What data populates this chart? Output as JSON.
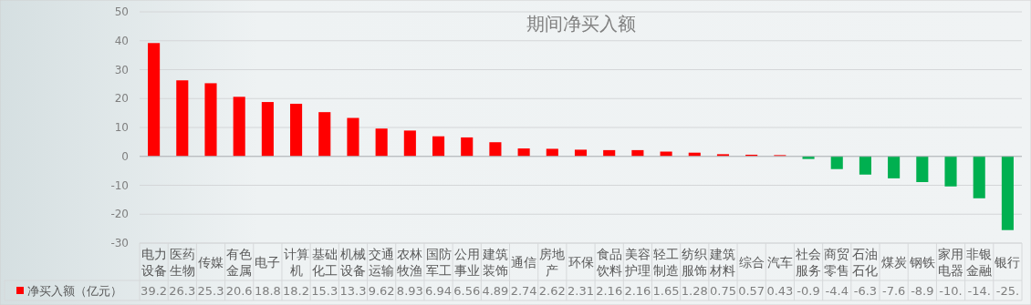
{
  "chart_data": {
    "type": "bar",
    "title": "期间净买入额",
    "categories": [
      "电力设备",
      "医药生物",
      "传媒",
      "有色金属",
      "电子",
      "计算机",
      "基础化工",
      "机械设备",
      "交通运输",
      "农林牧渔",
      "国防军工",
      "公用事业",
      "建筑装饰",
      "通信",
      "房地产",
      "环保",
      "食品饮料",
      "美容护理",
      "轻工制造",
      "纺织服饰",
      "建筑材料",
      "综合",
      "汽车",
      "社会服务",
      "商贸零售",
      "石油石化",
      "煤炭",
      "钢铁",
      "家用电器",
      "非银金融",
      "银行"
    ],
    "series": [
      {
        "name": "净买入额（亿元）",
        "color": "#ff0000",
        "values": [
          39.2,
          26.3,
          25.3,
          20.6,
          18.8,
          18.2,
          15.3,
          13.3,
          9.62,
          8.93,
          6.94,
          6.56,
          4.89,
          2.74,
          2.62,
          2.31,
          2.16,
          2.16,
          1.65,
          1.28,
          0.75,
          0.57,
          0.43,
          -0.9,
          -4.4,
          -6.3,
          -7.6,
          -8.9,
          -10.4,
          -14.5,
          -25.5
        ],
        "colors": [
          "#ff0000",
          "#ff0000",
          "#ff0000",
          "#ff0000",
          "#ff0000",
          "#ff0000",
          "#ff0000",
          "#ff0000",
          "#ff0000",
          "#ff0000",
          "#ff0000",
          "#ff0000",
          "#ff0000",
          "#ff0000",
          "#ff0000",
          "#ff0000",
          "#ff0000",
          "#ff0000",
          "#ff0000",
          "#ff0000",
          "#ff0000",
          "#ff0000",
          "#ff0000",
          "#00b050",
          "#00b050",
          "#00b050",
          "#00b050",
          "#00b050",
          "#00b050",
          "#00b050",
          "#00b050"
        ],
        "value_labels": [
          "39.2",
          "26.3",
          "25.3",
          "20.6",
          "18.8",
          "18.2",
          "15.3",
          "13.3",
          "9.62",
          "8.93",
          "6.94",
          "6.56",
          "4.89",
          "2.74",
          "2.62",
          "2.31",
          "2.16",
          "2.16",
          "1.65",
          "1.28",
          "0.75",
          "0.57",
          "0.43",
          "-0.9",
          "-4.4",
          "-6.3",
          "-7.6",
          "-8.9",
          "-10.",
          "-14.",
          "-25."
        ]
      }
    ],
    "ylim": [
      -30,
      50
    ],
    "yticks": [
      -30,
      -20,
      -10,
      0,
      10,
      20,
      30,
      40,
      50
    ],
    "grid": "y",
    "legend": "bottom"
  }
}
